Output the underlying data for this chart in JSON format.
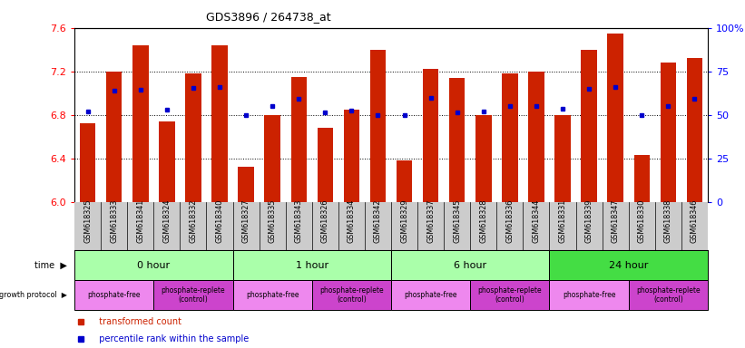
{
  "title": "GDS3896 / 264738_at",
  "samples": [
    "GSM618325",
    "GSM618333",
    "GSM618341",
    "GSM618324",
    "GSM618332",
    "GSM618340",
    "GSM618327",
    "GSM618335",
    "GSM618343",
    "GSM618326",
    "GSM618334",
    "GSM618342",
    "GSM618329",
    "GSM618337",
    "GSM618345",
    "GSM618328",
    "GSM618336",
    "GSM618344",
    "GSM618331",
    "GSM618339",
    "GSM618347",
    "GSM618330",
    "GSM618338",
    "GSM618346"
  ],
  "bar_values": [
    6.72,
    7.2,
    7.44,
    6.74,
    7.18,
    7.44,
    6.32,
    6.8,
    7.15,
    6.68,
    6.85,
    7.4,
    6.38,
    7.22,
    7.14,
    6.8,
    7.18,
    7.2,
    6.8,
    7.4,
    7.55,
    6.43,
    7.28,
    7.32
  ],
  "blue_values": [
    6.83,
    7.02,
    7.03,
    6.85,
    7.05,
    7.06,
    6.8,
    6.88,
    6.95,
    6.82,
    6.84,
    6.8,
    6.8,
    6.96,
    6.82,
    6.83,
    6.88,
    6.88,
    6.86,
    7.04,
    7.06,
    6.8,
    6.88,
    6.95
  ],
  "ylim_left": [
    6.0,
    7.6
  ],
  "yticks_left": [
    6.0,
    6.4,
    6.8,
    7.2,
    7.6
  ],
  "yticks_right": [
    0,
    25,
    50,
    75,
    100
  ],
  "bar_color": "#cc2200",
  "blue_color": "#0000cc",
  "bg_color": "#ffffff",
  "xticklabel_bg": "#cccccc",
  "time_groups": [
    {
      "label": "0 hour",
      "start": 0,
      "end": 6,
      "color": "#aaffaa"
    },
    {
      "label": "1 hour",
      "start": 6,
      "end": 12,
      "color": "#aaffaa"
    },
    {
      "label": "6 hour",
      "start": 12,
      "end": 18,
      "color": "#aaffaa"
    },
    {
      "label": "24 hour",
      "start": 18,
      "end": 24,
      "color": "#44dd44"
    }
  ],
  "protocol_groups": [
    {
      "label": "phosphate-free",
      "start": 0,
      "end": 3,
      "color": "#ee88ee"
    },
    {
      "label": "phosphate-replete\n(control)",
      "start": 3,
      "end": 6,
      "color": "#cc44cc"
    },
    {
      "label": "phosphate-free",
      "start": 6,
      "end": 9,
      "color": "#ee88ee"
    },
    {
      "label": "phosphate-replete\n(control)",
      "start": 9,
      "end": 12,
      "color": "#cc44cc"
    },
    {
      "label": "phosphate-free",
      "start": 12,
      "end": 15,
      "color": "#ee88ee"
    },
    {
      "label": "phosphate-replete\n(control)",
      "start": 15,
      "end": 18,
      "color": "#cc44cc"
    },
    {
      "label": "phosphate-free",
      "start": 18,
      "end": 21,
      "color": "#ee88ee"
    },
    {
      "label": "phosphate-replete\n(control)",
      "start": 21,
      "end": 24,
      "color": "#cc44cc"
    }
  ]
}
